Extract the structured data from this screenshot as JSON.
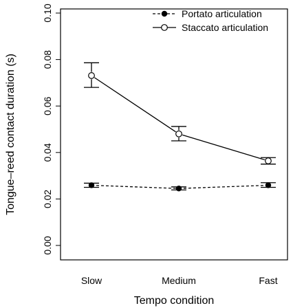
{
  "chart_data": {
    "type": "line",
    "categories": [
      "Slow",
      "Medium",
      "Fast"
    ],
    "xlabel": "Tempo condition",
    "ylabel": "Tongue–reed contact duration (s)",
    "ylim": [
      0.0,
      0.1
    ],
    "yticks": [
      "0.00",
      "0.02",
      "0.04",
      "0.06",
      "0.08",
      "0.10"
    ],
    "grid": false,
    "legend_position": "top-right",
    "series": [
      {
        "name": "Portato articulation",
        "values": [
          0.0259,
          0.0245,
          0.0259
        ],
        "err_low": [
          0.025,
          0.0239,
          0.025
        ],
        "err_high": [
          0.0268,
          0.0252,
          0.027
        ],
        "line_style": "dashed",
        "marker": "filled-circle",
        "color": "#000000"
      },
      {
        "name": "Staccato articulation",
        "values": [
          0.0731,
          0.048,
          0.0364
        ],
        "err_low": [
          0.068,
          0.045,
          0.035
        ],
        "err_high": [
          0.0786,
          0.0512,
          0.0378
        ],
        "line_style": "solid",
        "marker": "open-circle",
        "color": "#000000"
      }
    ]
  }
}
